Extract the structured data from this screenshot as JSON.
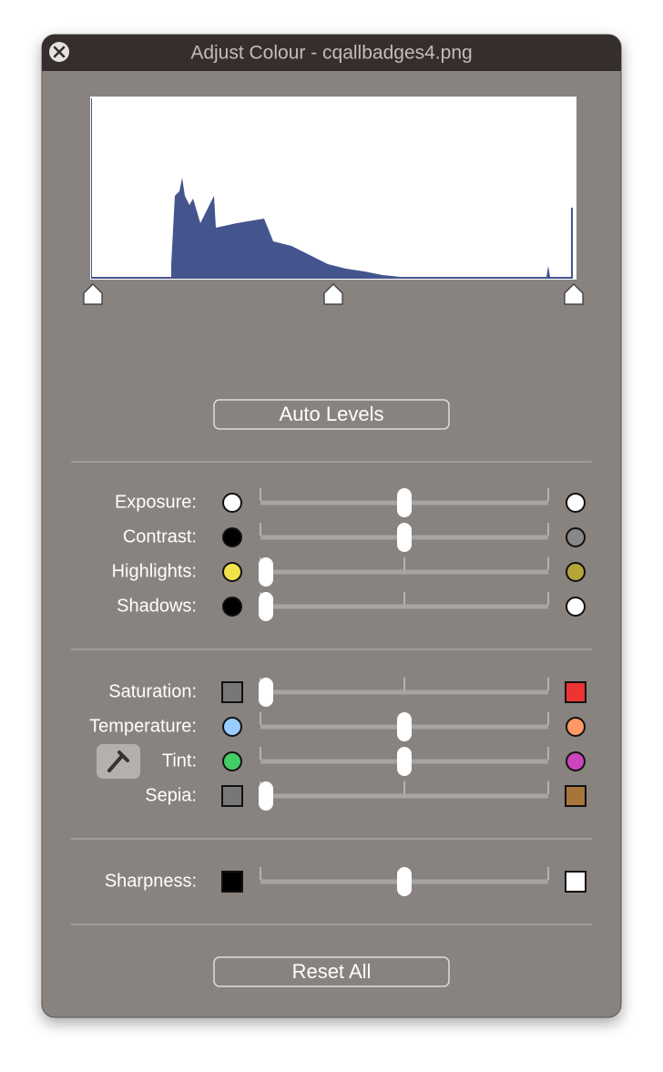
{
  "window": {
    "title": "Adjust Colour - cqallbadges4.png"
  },
  "auto_levels": "Auto Levels",
  "sliders": [
    {
      "label": "Exposure:",
      "value": 0.5
    },
    {
      "label": "Contrast:",
      "value": 0.5
    },
    {
      "label": "Highlights:",
      "value": 0
    },
    {
      "label": "Shadows:",
      "value": 0
    },
    {
      "label": "Saturation:",
      "value": 0
    },
    {
      "label": "Temperature:",
      "value": 0.5
    },
    {
      "label": "Tint:",
      "value": 0.5
    },
    {
      "label": "Sepia:",
      "value": 0
    },
    {
      "label": "Sharpness:",
      "value": 0.5
    }
  ],
  "reset": "Reset All"
}
